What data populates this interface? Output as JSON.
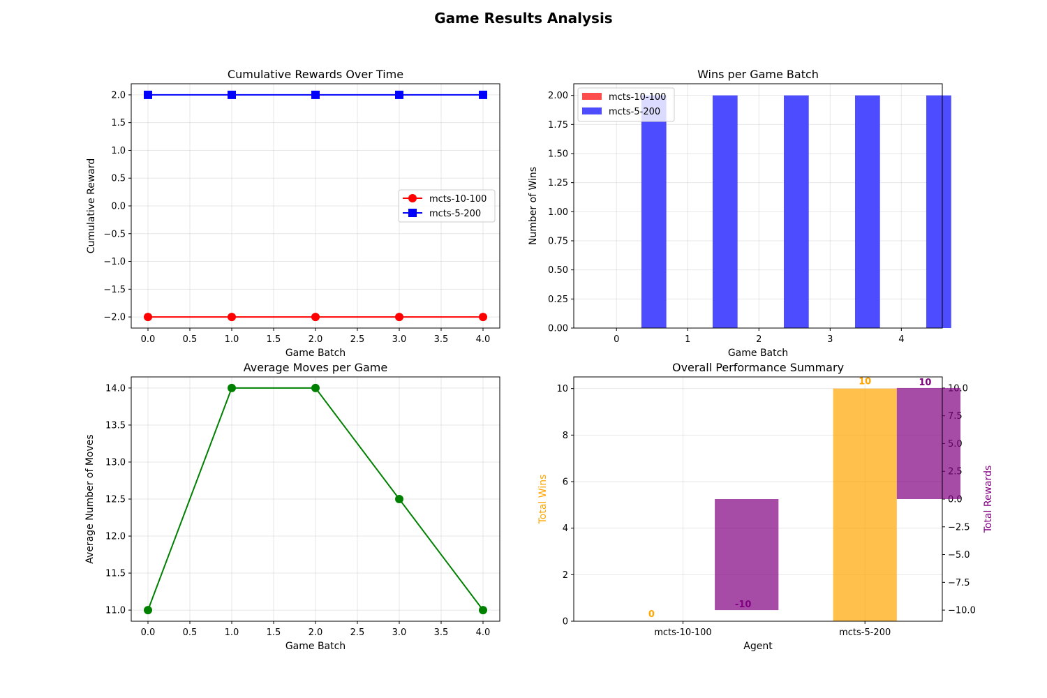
{
  "figure": {
    "title": "Game Results Analysis"
  },
  "colors": {
    "red": "#ff0000",
    "blue": "#0000ff",
    "green": "#008000",
    "bar_red": "#ff4d4d",
    "bar_blue": "#4d4dff",
    "orange": "#ffa500",
    "purple": "#800080"
  },
  "chart_data": [
    {
      "type": "line",
      "title": "Cumulative Rewards Over Time",
      "xlabel": "Game Batch",
      "ylabel": "Cumulative Reward",
      "x": [
        0,
        1,
        2,
        3,
        4
      ],
      "xlim": [
        -0.2,
        4.2
      ],
      "ylim": [
        -2.2,
        2.2
      ],
      "xticks": [
        0.0,
        0.5,
        1.0,
        1.5,
        2.0,
        2.5,
        3.0,
        3.5,
        4.0
      ],
      "xticklabels": [
        "0.0",
        "0.5",
        "1.0",
        "1.5",
        "2.0",
        "2.5",
        "3.0",
        "3.5",
        "4.0"
      ],
      "yticks": [
        -2.0,
        -1.5,
        -1.0,
        -0.5,
        0.0,
        0.5,
        1.0,
        1.5,
        2.0
      ],
      "yticklabels": [
        "−2.0",
        "−1.5",
        "−1.0",
        "−0.5",
        "0.0",
        "0.5",
        "1.0",
        "1.5",
        "2.0"
      ],
      "grid": true,
      "legend": "center-right",
      "series": [
        {
          "name": "mcts-10-100",
          "values": [
            -2,
            -2,
            -2,
            -2,
            -2
          ],
          "color": "#ff0000",
          "marker": "circle"
        },
        {
          "name": "mcts-5-200",
          "values": [
            2,
            2,
            2,
            2,
            2
          ],
          "color": "#0000ff",
          "marker": "square"
        }
      ]
    },
    {
      "type": "bar",
      "title": "Wins per Game Batch",
      "xlabel": "Game Batch",
      "ylabel": "Number of Wins",
      "categories": [
        "0",
        "1",
        "2",
        "3",
        "4"
      ],
      "ylim": [
        0,
        2.1
      ],
      "yticks": [
        0,
        0.25,
        0.5,
        0.75,
        1.0,
        1.25,
        1.5,
        1.75,
        2.0
      ],
      "yticklabels": [
        "0.00",
        "0.25",
        "0.50",
        "0.75",
        "1.00",
        "1.25",
        "1.50",
        "1.75",
        "2.00"
      ],
      "grid": true,
      "legend": "top-left",
      "series": [
        {
          "name": "mcts-10-100",
          "values": [
            0,
            0,
            0,
            0,
            0
          ],
          "color": "#ff4d4d"
        },
        {
          "name": "mcts-5-200",
          "values": [
            2,
            2,
            2,
            2,
            2
          ],
          "color": "#4d4dff"
        }
      ]
    },
    {
      "type": "line",
      "title": "Average Moves per Game",
      "xlabel": "Game Batch",
      "ylabel": "Average Number of Moves",
      "x": [
        0,
        1,
        2,
        3,
        4
      ],
      "xlim": [
        -0.2,
        4.2
      ],
      "ylim": [
        10.85,
        14.15
      ],
      "xticks": [
        0.0,
        0.5,
        1.0,
        1.5,
        2.0,
        2.5,
        3.0,
        3.5,
        4.0
      ],
      "xticklabels": [
        "0.0",
        "0.5",
        "1.0",
        "1.5",
        "2.0",
        "2.5",
        "3.0",
        "3.5",
        "4.0"
      ],
      "yticks": [
        11.0,
        11.5,
        12.0,
        12.5,
        13.0,
        13.5,
        14.0
      ],
      "yticklabels": [
        "11.0",
        "11.5",
        "12.0",
        "12.5",
        "13.0",
        "13.5",
        "14.0"
      ],
      "grid": true,
      "series": [
        {
          "values": [
            11,
            14,
            14,
            12.5,
            11
          ],
          "color": "#008000",
          "marker": "circle"
        }
      ]
    },
    {
      "type": "bar",
      "title": "Overall Performance Summary",
      "xlabel": "Agent",
      "ylabel": "Total Wins",
      "ylabel_right": "Total Rewards",
      "categories": [
        "mcts-10-100",
        "mcts-5-200"
      ],
      "ylim": [
        0,
        10.5
      ],
      "ylim_right": [
        -11,
        11
      ],
      "yticks": [
        0,
        2,
        4,
        6,
        8,
        10
      ],
      "yticklabels": [
        "0",
        "2",
        "4",
        "6",
        "8",
        "10"
      ],
      "yticks_right": [
        -10,
        -7.5,
        -5,
        -2.5,
        0,
        2.5,
        5,
        7.5,
        10
      ],
      "yticklabels_right": [
        "−10.0",
        "−7.5",
        "−5.0",
        "−2.5",
        "0.0",
        "2.5",
        "5.0",
        "7.5",
        "10.0"
      ],
      "grid": true,
      "series": [
        {
          "axis": "left",
          "values": [
            0,
            10
          ],
          "labels": [
            "0",
            "10"
          ],
          "color": "#ffa500"
        },
        {
          "axis": "right",
          "values": [
            -10,
            10
          ],
          "labels": [
            "-10",
            "10"
          ],
          "color": "#800080"
        }
      ]
    }
  ]
}
